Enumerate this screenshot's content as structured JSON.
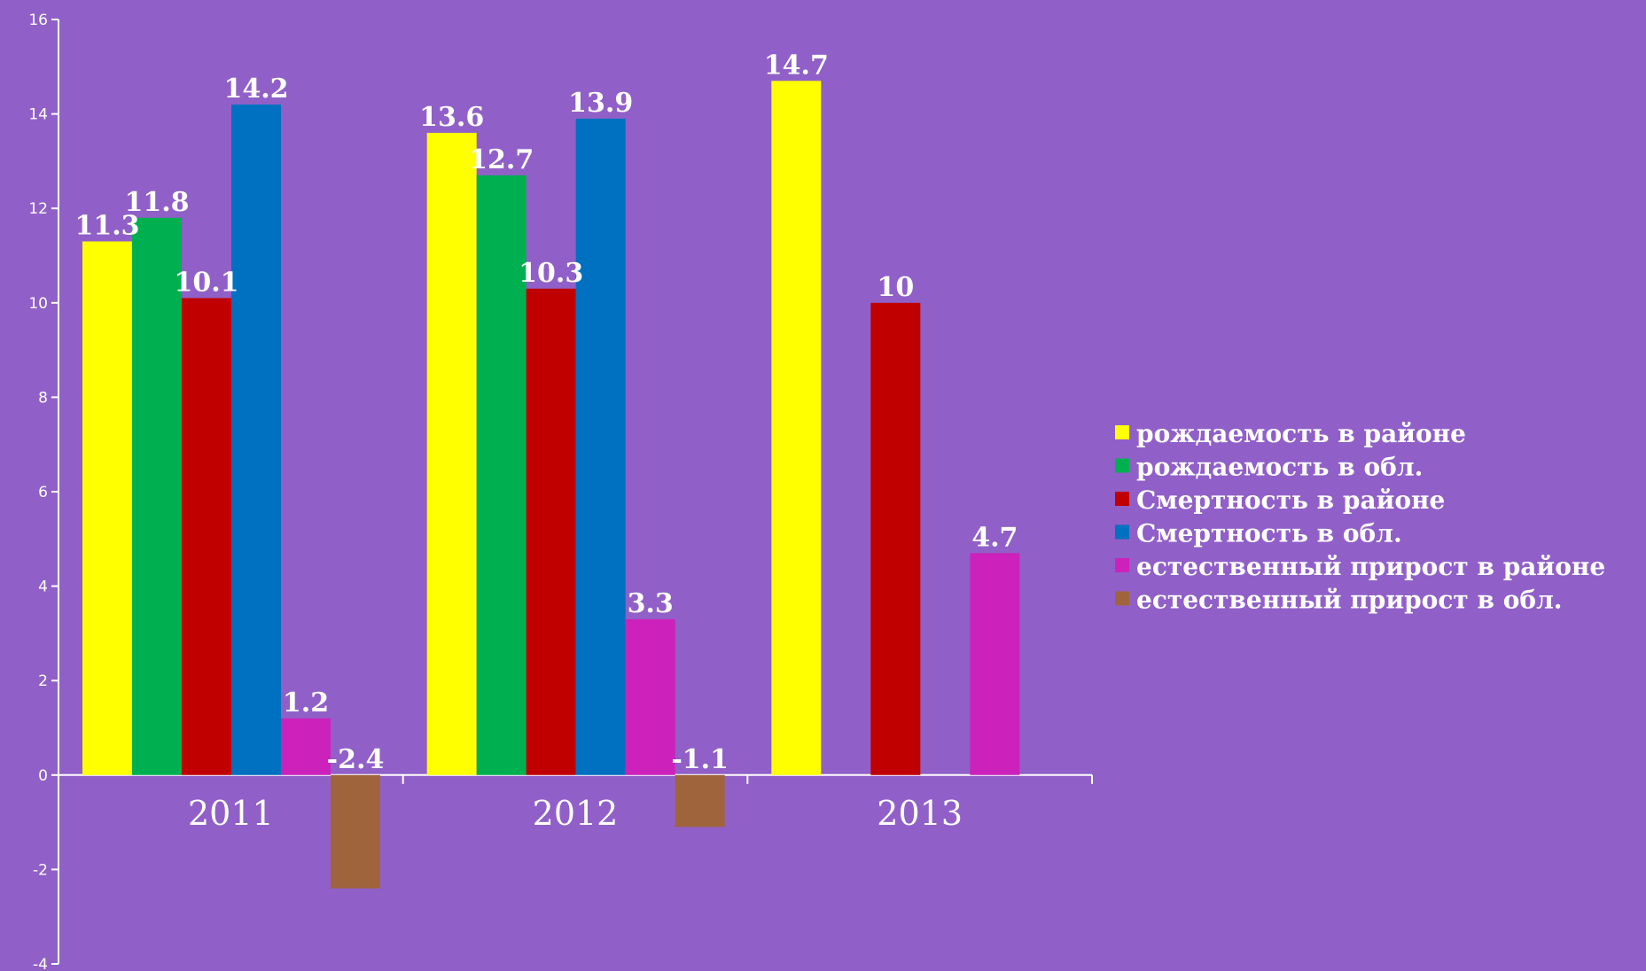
{
  "chart_data": {
    "type": "bar",
    "categories": [
      "2011",
      "2012",
      "2013"
    ],
    "ylim": [
      -4,
      16
    ],
    "yticks": [
      -4,
      -2,
      0,
      2,
      4,
      6,
      8,
      10,
      12,
      14,
      16
    ],
    "grid": false,
    "legend_position": "right",
    "series": [
      {
        "name": "рождаемость в районе",
        "color": "#ffff00",
        "values": [
          11.3,
          13.6,
          14.7
        ],
        "labels": [
          "11.3",
          "13.6",
          "14.7"
        ]
      },
      {
        "name": "рождаемость в обл.",
        "color": "#00b050",
        "values": [
          11.8,
          12.7,
          null
        ],
        "labels": [
          "11.8",
          "12.7",
          ""
        ]
      },
      {
        "name": "Смертность в районе",
        "color": "#c00000",
        "values": [
          10.1,
          10.3,
          10
        ],
        "labels": [
          "10.1",
          "10.3",
          "10"
        ]
      },
      {
        "name": "Смертность в обл.",
        "color": "#0070c0",
        "values": [
          14.2,
          13.9,
          null
        ],
        "labels": [
          "14.2",
          "13.9",
          ""
        ]
      },
      {
        "name": "естественный прирост в районе",
        "color": "#cc22bb",
        "values": [
          1.2,
          3.3,
          4.7
        ],
        "labels": [
          "1.2",
          "3.3",
          "4.7"
        ]
      },
      {
        "name": "естественный прирост в обл.",
        "color": "#a0643c",
        "values": [
          -2.4,
          -1.1,
          null
        ],
        "labels": [
          "-2.4",
          "-1.1",
          ""
        ]
      }
    ]
  }
}
